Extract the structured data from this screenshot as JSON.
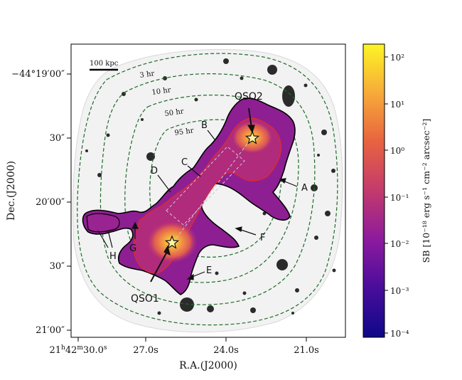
{
  "figure": {
    "scalebar_label": "100 kpc",
    "dec_ticks": [
      "−44°19′00″",
      "30″",
      "20′00″",
      "30″",
      "21′00″"
    ],
    "ra_ticks": [
      "21h42m30.0s",
      "27.0s",
      "24.0s",
      "21.0s"
    ],
    "ra_tick_first": {
      "hour": "21",
      "min": "42",
      "sec": "30.0"
    },
    "xlabel": "R.A.(J2000)",
    "ylabel": "Dec.(J2000)",
    "exposure_contours": [
      "3 hr",
      "10 hr",
      "50 hr",
      "95 hr"
    ],
    "region_labels": [
      "A",
      "B",
      "C",
      "D",
      "E",
      "F",
      "G",
      "H"
    ],
    "quasars": [
      "QSO1",
      "QSO2"
    ],
    "colorbar": {
      "label": "SB [10⁻¹⁸ erg s⁻¹ cm⁻² arcsec⁻²]",
      "ticks": [
        "10²",
        "10¹",
        "10⁰",
        "10⁻¹",
        "10⁻²",
        "10⁻³",
        "10⁻⁴"
      ],
      "colors": [
        "#fcf524",
        "#f7a93a",
        "#e8643f",
        "#c33a6c",
        "#8b1a9e",
        "#4a0d9c",
        "#0d0887"
      ]
    }
  }
}
